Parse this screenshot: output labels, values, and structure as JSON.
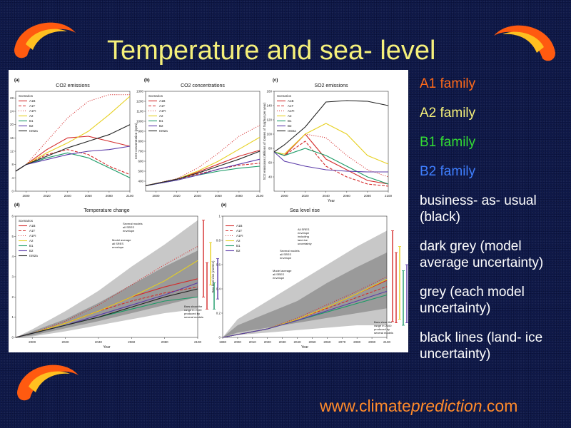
{
  "slide": {
    "title": "Temperature and sea- level",
    "legend": [
      {
        "text": "A1 family",
        "color": "#ff6a1a"
      },
      {
        "text": "A2 family",
        "color": "#f5f07a"
      },
      {
        "text": "B1 family",
        "color": "#33dd33"
      },
      {
        "text": "B2 family",
        "color": "#3f7fff"
      },
      {
        "text": "business- as- usual (black)",
        "color": "#ffffff"
      },
      {
        "text": "dark grey (model average uncertainty)",
        "color": "#ffffff"
      },
      {
        "text": "grey (each model uncertainty)",
        "color": "#ffffff"
      },
      {
        "text": "black lines (land- ice uncertainty)",
        "color": "#ffffff"
      }
    ],
    "footer": {
      "pre": "www.climate",
      "italic": "prediction",
      "post": ".com"
    }
  },
  "chart_data": [
    {
      "id": "a",
      "panel_label": "(a)",
      "type": "line",
      "title": "CO2 emissions",
      "xlabel": "",
      "ylabel": "CO2 emissions (Gt C/yr)",
      "xlim": [
        1990,
        2100
      ],
      "ylim": [
        0,
        30
      ],
      "xticks": [
        2000,
        2020,
        2040,
        2060,
        2080,
        2100
      ],
      "yticks": [
        0,
        4,
        8,
        12,
        16,
        20,
        24,
        28
      ],
      "legend_title": "Scenarios",
      "series": [
        {
          "name": "A1B",
          "color": "#d42a2a",
          "dash": "",
          "x": [
            1990,
            2000,
            2020,
            2040,
            2060,
            2080,
            2100
          ],
          "y": [
            6,
            8,
            12.5,
            16,
            16.5,
            15,
            13.5
          ]
        },
        {
          "name": "A1T",
          "color": "#d42a2a",
          "dash": "4,2",
          "x": [
            1990,
            2000,
            2020,
            2040,
            2060,
            2080,
            2100
          ],
          "y": [
            6,
            8,
            11,
            12.5,
            11,
            7.5,
            5
          ]
        },
        {
          "name": "A1FI",
          "color": "#d42a2a",
          "dash": "1,2",
          "x": [
            1990,
            2000,
            2020,
            2040,
            2060,
            2080,
            2100
          ],
          "y": [
            6,
            8,
            15,
            22,
            27,
            29,
            29
          ]
        },
        {
          "name": "A2",
          "color": "#e6d020",
          "dash": "",
          "x": [
            1990,
            2000,
            2020,
            2040,
            2060,
            2080,
            2100
          ],
          "y": [
            6,
            8,
            11.5,
            14.5,
            18,
            23,
            28.5
          ]
        },
        {
          "name": "B1",
          "color": "#1a9a66",
          "dash": "",
          "x": [
            1990,
            2000,
            2020,
            2040,
            2060,
            2080,
            2100
          ],
          "y": [
            6,
            8,
            10,
            11.5,
            10,
            7,
            4
          ]
        },
        {
          "name": "B2",
          "color": "#5a3aa8",
          "dash": "",
          "x": [
            1990,
            2000,
            2020,
            2040,
            2060,
            2080,
            2100
          ],
          "y": [
            6,
            8,
            9.5,
            11,
            12,
            12.5,
            13.5
          ]
        },
        {
          "name": "IS92a",
          "color": "#222222",
          "dash": "",
          "x": [
            1990,
            2000,
            2020,
            2040,
            2060,
            2080,
            2100
          ],
          "y": [
            6,
            8,
            10.5,
            13,
            15,
            17,
            20
          ]
        }
      ]
    },
    {
      "id": "b",
      "panel_label": "(b)",
      "type": "line",
      "title": "CO2 concentrations",
      "xlabel": "",
      "ylabel": "CO2 concentration (ppm)",
      "xlim": [
        1990,
        2100
      ],
      "ylim": [
        300,
        1300
      ],
      "xticks": [
        2000,
        2020,
        2040,
        2060,
        2080,
        2100
      ],
      "yticks": [
        400,
        500,
        600,
        700,
        800,
        900,
        1000,
        1100,
        1200,
        1300
      ],
      "legend_title": "Scenarios",
      "series": [
        {
          "name": "A1B",
          "color": "#d42a2a",
          "dash": "",
          "x": [
            1990,
            2020,
            2040,
            2060,
            2080,
            2100
          ],
          "y": [
            355,
            420,
            490,
            570,
            650,
            710
          ]
        },
        {
          "name": "A1T",
          "color": "#d42a2a",
          "dash": "4,2",
          "x": [
            1990,
            2020,
            2040,
            2060,
            2080,
            2100
          ],
          "y": [
            355,
            415,
            470,
            520,
            560,
            580
          ]
        },
        {
          "name": "A1FI",
          "color": "#d42a2a",
          "dash": "1,2",
          "x": [
            1990,
            2020,
            2040,
            2060,
            2080,
            2100
          ],
          "y": [
            355,
            425,
            530,
            680,
            850,
            960
          ]
        },
        {
          "name": "A2",
          "color": "#e6d020",
          "dash": "",
          "x": [
            1990,
            2020,
            2040,
            2060,
            2080,
            2100
          ],
          "y": [
            355,
            420,
            500,
            600,
            720,
            840
          ]
        },
        {
          "name": "B1",
          "color": "#1a9a66",
          "dash": "",
          "x": [
            1990,
            2020,
            2040,
            2060,
            2080,
            2100
          ],
          "y": [
            355,
            410,
            460,
            500,
            530,
            550
          ]
        },
        {
          "name": "B2",
          "color": "#5a3aa8",
          "dash": "",
          "x": [
            1990,
            2020,
            2040,
            2060,
            2080,
            2100
          ],
          "y": [
            355,
            410,
            460,
            520,
            570,
            620
          ]
        },
        {
          "name": "IS92a",
          "color": "#222222",
          "dash": "",
          "x": [
            1990,
            2020,
            2040,
            2060,
            2080,
            2100
          ],
          "y": [
            355,
            420,
            480,
            550,
            620,
            700
          ]
        }
      ]
    },
    {
      "id": "c",
      "panel_label": "(c)",
      "type": "line",
      "title": "SO2 emissions",
      "xlabel": "Year",
      "ylabel": "SO2 emissions (Millions of tonnes of Sulphur per year)",
      "xlim": [
        1990,
        2100
      ],
      "ylim": [
        20,
        160
      ],
      "xticks": [
        2000,
        2020,
        2040,
        2060,
        2080,
        2100
      ],
      "yticks": [
        40,
        60,
        80,
        100,
        120,
        140,
        160
      ],
      "legend_title": "Scenarios",
      "series": [
        {
          "name": "A1B",
          "color": "#d42a2a",
          "dash": "",
          "x": [
            1990,
            2000,
            2020,
            2040,
            2060,
            2080,
            2100
          ],
          "y": [
            75,
            70,
            100,
            65,
            50,
            35,
            30
          ]
        },
        {
          "name": "A1T",
          "color": "#d42a2a",
          "dash": "4,2",
          "x": [
            1990,
            2000,
            2020,
            2040,
            2060,
            2080,
            2100
          ],
          "y": [
            75,
            70,
            90,
            55,
            40,
            30,
            27
          ]
        },
        {
          "name": "A1FI",
          "color": "#d42a2a",
          "dash": "1,2",
          "x": [
            1990,
            2000,
            2020,
            2040,
            2060,
            2080,
            2100
          ],
          "y": [
            75,
            70,
            100,
            95,
            70,
            50,
            40
          ]
        },
        {
          "name": "A2",
          "color": "#e6d020",
          "dash": "",
          "x": [
            1990,
            2000,
            2020,
            2040,
            2060,
            2080,
            2100
          ],
          "y": [
            75,
            72,
            100,
            115,
            100,
            70,
            58
          ]
        },
        {
          "name": "B1",
          "color": "#1a9a66",
          "dash": "",
          "x": [
            1990,
            2000,
            2020,
            2040,
            2060,
            2080,
            2100
          ],
          "y": [
            75,
            70,
            80,
            70,
            55,
            40,
            30
          ]
        },
        {
          "name": "B2",
          "color": "#5a3aa8",
          "dash": "",
          "x": [
            1990,
            2000,
            2020,
            2040,
            2060,
            2080,
            2100
          ],
          "y": [
            75,
            62,
            55,
            50,
            48,
            47,
            47
          ]
        },
        {
          "name": "IS92a",
          "color": "#222222",
          "dash": "",
          "x": [
            1990,
            2000,
            2020,
            2040,
            2060,
            2080,
            2100
          ],
          "y": [
            75,
            85,
            110,
            145,
            147,
            146,
            140
          ]
        }
      ]
    },
    {
      "id": "d",
      "panel_label": "(d)",
      "type": "line",
      "title": "Temperature change",
      "xlabel": "Year",
      "ylabel": "Temperature change (°C)",
      "xlim": [
        1990,
        2100
      ],
      "ylim": [
        0,
        6
      ],
      "xticks": [
        2000,
        2020,
        2040,
        2060,
        2080,
        2100
      ],
      "yticks": [
        0,
        1,
        2,
        3,
        4,
        5,
        6
      ],
      "legend_title": "Scenarios",
      "annotations": [
        "Several models all SRES envelope",
        "Model average all SRES envelope",
        "Bars show the range in 2100 produced by several models"
      ],
      "series": [
        {
          "name": "A1B",
          "color": "#d42a2a",
          "dash": "",
          "x": [
            1990,
            2000,
            2020,
            2040,
            2060,
            2080,
            2100
          ],
          "y": [
            0,
            0.2,
            0.7,
            1.3,
            2.0,
            2.5,
            2.9
          ]
        },
        {
          "name": "A1T",
          "color": "#d42a2a",
          "dash": "4,2",
          "x": [
            1990,
            2000,
            2020,
            2040,
            2060,
            2080,
            2100
          ],
          "y": [
            0,
            0.2,
            0.7,
            1.3,
            1.8,
            2.2,
            2.5
          ]
        },
        {
          "name": "A1FI",
          "color": "#d42a2a",
          "dash": "1,2",
          "x": [
            1990,
            2000,
            2020,
            2040,
            2060,
            2080,
            2100
          ],
          "y": [
            0,
            0.2,
            0.8,
            1.6,
            2.6,
            3.6,
            4.5
          ]
        },
        {
          "name": "A2",
          "color": "#e6d020",
          "dash": "",
          "x": [
            1990,
            2000,
            2020,
            2040,
            2060,
            2080,
            2100
          ],
          "y": [
            0,
            0.2,
            0.7,
            1.3,
            2.0,
            2.8,
            3.8
          ]
        },
        {
          "name": "B1",
          "color": "#1a9a66",
          "dash": "",
          "x": [
            1990,
            2000,
            2020,
            2040,
            2060,
            2080,
            2100
          ],
          "y": [
            0,
            0.2,
            0.6,
            1.0,
            1.4,
            1.8,
            2.0
          ]
        },
        {
          "name": "B2",
          "color": "#5a3aa8",
          "dash": "",
          "x": [
            1990,
            2000,
            2020,
            2040,
            2060,
            2080,
            2100
          ],
          "y": [
            0,
            0.2,
            0.6,
            1.1,
            1.6,
            2.1,
            2.7
          ]
        },
        {
          "name": "IS92a",
          "color": "#222222",
          "dash": "",
          "x": [
            1990,
            2000,
            2020,
            2040,
            2060,
            2080,
            2100
          ],
          "y": [
            0,
            0.2,
            0.6,
            1.0,
            1.5,
            2.0,
            2.4
          ]
        }
      ]
    },
    {
      "id": "e",
      "panel_label": "(e)",
      "type": "line",
      "title": "Sea level rise",
      "xlabel": "Year",
      "ylabel": "Sea level rise (metres)",
      "xlim": [
        1990,
        2100
      ],
      "ylim": [
        0,
        1.0
      ],
      "xticks": [
        1990,
        2000,
        2010,
        2020,
        2030,
        2040,
        2050,
        2060,
        2070,
        2080,
        2090,
        2100
      ],
      "yticks": [
        0.0,
        0.2,
        0.4,
        0.6,
        0.8,
        1.0
      ],
      "legend_title": "",
      "annotations": [
        "All SRES envelope including land-ice uncertainty",
        "Several models all SRES envelope",
        "Model average all SRES envelope",
        "Bars show the range in 2100 produced by several models"
      ],
      "series": [
        {
          "name": "A1B",
          "color": "#d42a2a",
          "dash": "",
          "x": [
            1990,
            2020,
            2040,
            2060,
            2080,
            2100
          ],
          "y": [
            0,
            0.07,
            0.15,
            0.25,
            0.36,
            0.47
          ]
        },
        {
          "name": "A1T",
          "color": "#d42a2a",
          "dash": "4,2",
          "x": [
            1990,
            2020,
            2040,
            2060,
            2080,
            2100
          ],
          "y": [
            0,
            0.07,
            0.15,
            0.24,
            0.33,
            0.42
          ]
        },
        {
          "name": "A1FI",
          "color": "#d42a2a",
          "dash": "1,2",
          "x": [
            1990,
            2020,
            2040,
            2060,
            2080,
            2100
          ],
          "y": [
            0,
            0.07,
            0.16,
            0.27,
            0.38,
            0.5
          ]
        },
        {
          "name": "A2",
          "color": "#e6d020",
          "dash": "",
          "x": [
            1990,
            2020,
            2040,
            2060,
            2080,
            2100
          ],
          "y": [
            0,
            0.07,
            0.15,
            0.25,
            0.36,
            0.48
          ]
        },
        {
          "name": "B1",
          "color": "#1a9a66",
          "dash": "",
          "x": [
            1990,
            2020,
            2040,
            2060,
            2080,
            2100
          ],
          "y": [
            0,
            0.07,
            0.14,
            0.21,
            0.28,
            0.35
          ]
        },
        {
          "name": "B2",
          "color": "#5a3aa8",
          "dash": "",
          "x": [
            1990,
            2020,
            2040,
            2060,
            2080,
            2100
          ],
          "y": [
            0,
            0.07,
            0.14,
            0.22,
            0.3,
            0.38
          ]
        }
      ]
    }
  ]
}
